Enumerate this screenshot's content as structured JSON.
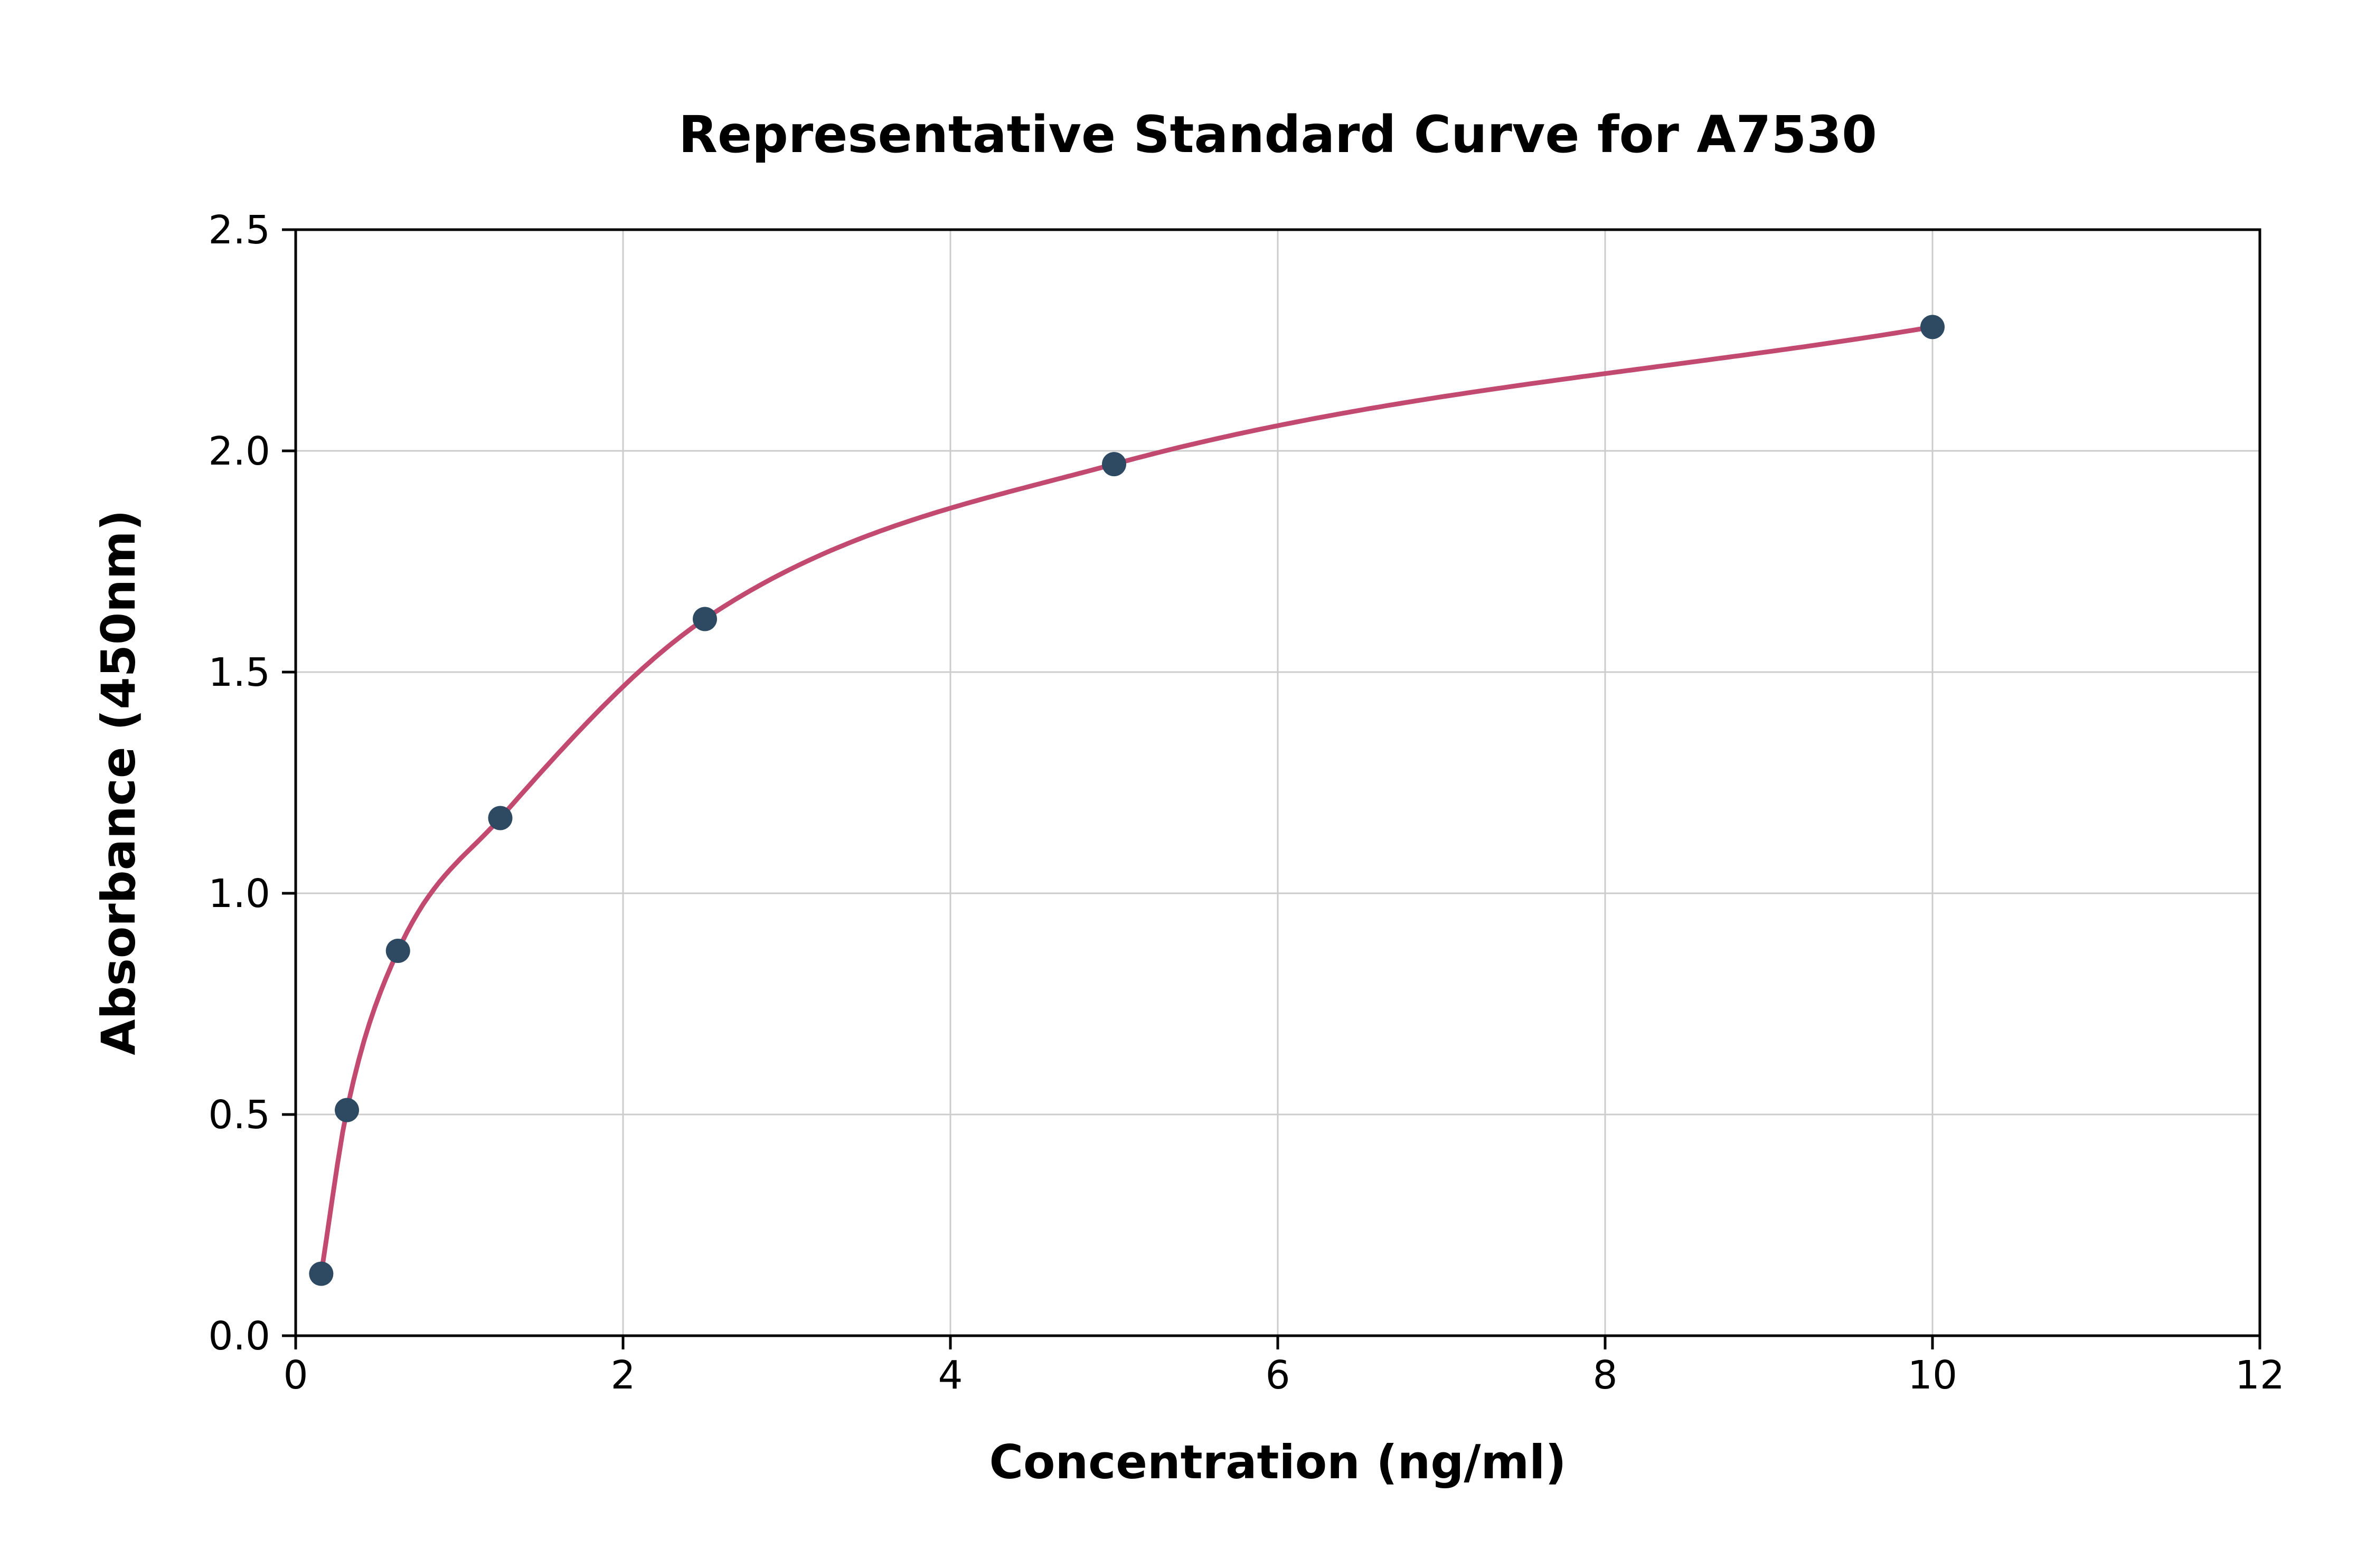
{
  "chart_data": {
    "type": "scatter",
    "title": "Representative Standard Curve for A7530",
    "xlabel": "Concentration (ng/ml)",
    "ylabel": "Absorbance (450nm)",
    "x": [
      0.156,
      0.313,
      0.625,
      1.25,
      2.5,
      5,
      10
    ],
    "y": [
      0.14,
      0.51,
      0.87,
      1.17,
      1.62,
      1.97,
      2.28
    ],
    "series": [
      {
        "name": "standard-points",
        "type": "scatter"
      },
      {
        "name": "fitted-curve",
        "type": "line"
      }
    ],
    "xlim": [
      0,
      12
    ],
    "ylim": [
      0,
      2.5
    ],
    "x_ticks": [
      0,
      2,
      4,
      6,
      8,
      10,
      12
    ],
    "x_tick_labels": [
      "0",
      "2",
      "4",
      "6",
      "8",
      "10",
      "12"
    ],
    "y_ticks": [
      0,
      0.5,
      1,
      1.5,
      2,
      2.5
    ],
    "y_tick_labels": [
      "0.0",
      "0.5",
      "1.0",
      "1.5",
      "2.0",
      "2.5"
    ],
    "grid": true,
    "legend": "none",
    "colors": {
      "curve": "#c24970",
      "points": "#2e4a62",
      "grid": "#cccccc",
      "axes": "#000000",
      "background": "#ffffff"
    }
  }
}
